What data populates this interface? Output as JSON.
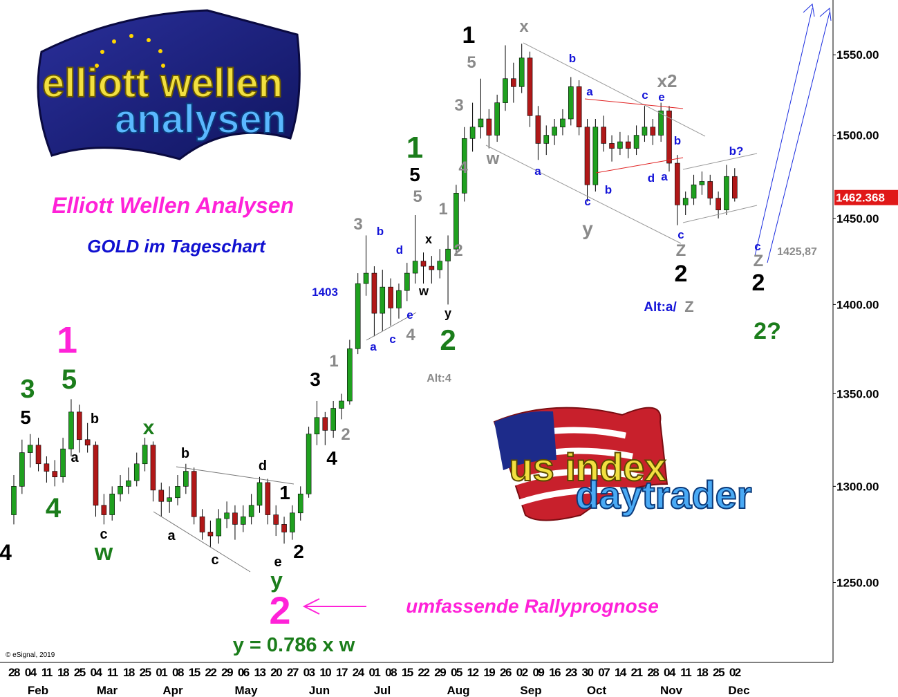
{
  "chart_data": {
    "type": "candlestick",
    "title": "Elliott Wellen Analysen",
    "subtitle": "GOLD im Tageschart",
    "log_scale": true,
    "ylim": [
      1211,
      1585
    ],
    "yticks": [
      {
        "value": 1250,
        "label": "1250.00"
      },
      {
        "value": 1300,
        "label": "1300.00"
      },
      {
        "value": 1350,
        "label": "1350.00"
      },
      {
        "value": 1400,
        "label": "1400.00"
      },
      {
        "value": 1450,
        "label": "1450.00"
      },
      {
        "value": 1500,
        "label": "1500.00"
      },
      {
        "value": 1550,
        "label": "1550.00"
      }
    ],
    "last_price": 1462.368,
    "up_color": "#1fa01f",
    "down_color": "#b01818",
    "x_tick_labels": [
      "28",
      "04",
      "11",
      "18",
      "25",
      "04",
      "11",
      "18",
      "25",
      "01",
      "08",
      "15",
      "22",
      "29",
      "06",
      "13",
      "20",
      "27",
      "03",
      "10",
      "17",
      "24",
      "01",
      "08",
      "15",
      "22",
      "29",
      "05",
      "12",
      "19",
      "26",
      "02",
      "09",
      "16",
      "23",
      "30",
      "07",
      "14",
      "21",
      "28",
      "04",
      "11",
      "18",
      "25",
      "02"
    ],
    "month_labels": [
      "Feb",
      "Mar",
      "Apr",
      "May",
      "Jun",
      "Jul",
      "Aug",
      "Sep",
      "Oct",
      "Nov",
      "Dec"
    ],
    "ohlc": [
      [
        1285,
        1306,
        1280,
        1300
      ],
      [
        1300,
        1325,
        1296,
        1318
      ],
      [
        1318,
        1328,
        1310,
        1322
      ],
      [
        1322,
        1326,
        1308,
        1312
      ],
      [
        1312,
        1316,
        1302,
        1308
      ],
      [
        1308,
        1314,
        1300,
        1305
      ],
      [
        1305,
        1326,
        1302,
        1320
      ],
      [
        1320,
        1347,
        1316,
        1340
      ],
      [
        1340,
        1344,
        1318,
        1325
      ],
      [
        1325,
        1334,
        1318,
        1322
      ],
      [
        1322,
        1324,
        1284,
        1290
      ],
      [
        1290,
        1296,
        1280,
        1285
      ],
      [
        1285,
        1300,
        1282,
        1296
      ],
      [
        1296,
        1306,
        1292,
        1300
      ],
      [
        1300,
        1310,
        1296,
        1303
      ],
      [
        1303,
        1318,
        1300,
        1312
      ],
      [
        1312,
        1326,
        1308,
        1322
      ],
      [
        1322,
        1324,
        1292,
        1298
      ],
      [
        1298,
        1302,
        1284,
        1292
      ],
      [
        1292,
        1300,
        1286,
        1294
      ],
      [
        1294,
        1306,
        1290,
        1300
      ],
      [
        1300,
        1312,
        1296,
        1308
      ],
      [
        1308,
        1310,
        1280,
        1284
      ],
      [
        1284,
        1288,
        1272,
        1276
      ],
      [
        1276,
        1282,
        1268,
        1274
      ],
      [
        1274,
        1288,
        1270,
        1283
      ],
      [
        1283,
        1292,
        1278,
        1286
      ],
      [
        1286,
        1290,
        1272,
        1280
      ],
      [
        1280,
        1290,
        1276,
        1284
      ],
      [
        1284,
        1296,
        1280,
        1290
      ],
      [
        1290,
        1305,
        1286,
        1302
      ],
      [
        1302,
        1304,
        1280,
        1285
      ],
      [
        1285,
        1290,
        1274,
        1280
      ],
      [
        1280,
        1284,
        1270,
        1276
      ],
      [
        1276,
        1290,
        1272,
        1286
      ],
      [
        1286,
        1300,
        1282,
        1296
      ],
      [
        1296,
        1332,
        1294,
        1328
      ],
      [
        1328,
        1346,
        1322,
        1337
      ],
      [
        1337,
        1340,
        1322,
        1330
      ],
      [
        1330,
        1346,
        1326,
        1342
      ],
      [
        1342,
        1350,
        1336,
        1346
      ],
      [
        1346,
        1380,
        1344,
        1375
      ],
      [
        1375,
        1418,
        1372,
        1412
      ],
      [
        1412,
        1440,
        1405,
        1418
      ],
      [
        1418,
        1422,
        1382,
        1395
      ],
      [
        1395,
        1420,
        1385,
        1410
      ],
      [
        1410,
        1415,
        1388,
        1398
      ],
      [
        1398,
        1412,
        1392,
        1408
      ],
      [
        1408,
        1424,
        1402,
        1418
      ],
      [
        1418,
        1452,
        1412,
        1425
      ],
      [
        1425,
        1430,
        1412,
        1422
      ],
      [
        1422,
        1428,
        1412,
        1420
      ],
      [
        1420,
        1432,
        1415,
        1425
      ],
      [
        1425,
        1440,
        1400,
        1432
      ],
      [
        1432,
        1470,
        1428,
        1465
      ],
      [
        1465,
        1505,
        1460,
        1498
      ],
      [
        1498,
        1520,
        1490,
        1505
      ],
      [
        1505,
        1535,
        1498,
        1510
      ],
      [
        1510,
        1516,
        1492,
        1500
      ],
      [
        1500,
        1525,
        1496,
        1520
      ],
      [
        1520,
        1556,
        1515,
        1535
      ],
      [
        1535,
        1545,
        1520,
        1530
      ],
      [
        1530,
        1557,
        1526,
        1548
      ],
      [
        1548,
        1552,
        1505,
        1512
      ],
      [
        1512,
        1518,
        1485,
        1495
      ],
      [
        1495,
        1506,
        1488,
        1500
      ],
      [
        1500,
        1510,
        1494,
        1505
      ],
      [
        1505,
        1516,
        1500,
        1510
      ],
      [
        1510,
        1536,
        1506,
        1530
      ],
      [
        1530,
        1534,
        1500,
        1505
      ],
      [
        1505,
        1510,
        1460,
        1470
      ],
      [
        1470,
        1510,
        1466,
        1505
      ],
      [
        1505,
        1512,
        1490,
        1495
      ],
      [
        1495,
        1500,
        1484,
        1492
      ],
      [
        1492,
        1502,
        1488,
        1496
      ],
      [
        1496,
        1500,
        1486,
        1492
      ],
      [
        1492,
        1506,
        1488,
        1500
      ],
      [
        1500,
        1518,
        1496,
        1505
      ],
      [
        1505,
        1510,
        1494,
        1500
      ],
      [
        1500,
        1520,
        1496,
        1515
      ],
      [
        1515,
        1518,
        1478,
        1483
      ],
      [
        1483,
        1488,
        1446,
        1458
      ],
      [
        1458,
        1466,
        1452,
        1462
      ],
      [
        1462,
        1476,
        1458,
        1470
      ],
      [
        1470,
        1478,
        1464,
        1472
      ],
      [
        1472,
        1476,
        1458,
        1462
      ],
      [
        1462,
        1466,
        1450,
        1455
      ],
      [
        1455,
        1482,
        1452,
        1475
      ],
      [
        1475,
        1480,
        1460,
        1462
      ]
    ],
    "annotations": [
      "1",
      "5",
      "2",
      "2",
      "3",
      "4",
      "1",
      "2",
      "5",
      "4",
      "x",
      "5",
      "3",
      "4",
      "1",
      "2",
      "5",
      "3",
      "x2",
      "w",
      "y",
      "Z",
      "Z",
      "4",
      "1",
      "2",
      "1",
      "3",
      "5",
      "x",
      "4",
      "w",
      "y",
      "2",
      "2?",
      "b",
      "a",
      "c",
      "e",
      "b",
      "d",
      "a",
      "a",
      "b",
      "c",
      "c",
      "b?",
      "c",
      "b",
      "d",
      "e",
      "a",
      "c",
      "1403",
      "Alt:a/",
      "x",
      "w",
      "y",
      "b",
      "a",
      "c",
      "b",
      "a",
      "c",
      "d",
      "e",
      "1",
      "2",
      "Alt:4",
      "1425,87",
      "Z"
    ],
    "rally_note": "umfassende Rallyprognose",
    "ratio_note": "y = 0.786 x w",
    "copyright": "© eSignal, 2019",
    "logo_top": [
      "elliott wellen",
      "analysen"
    ],
    "logo_bottom": [
      "us index",
      "daytrader"
    ]
  }
}
